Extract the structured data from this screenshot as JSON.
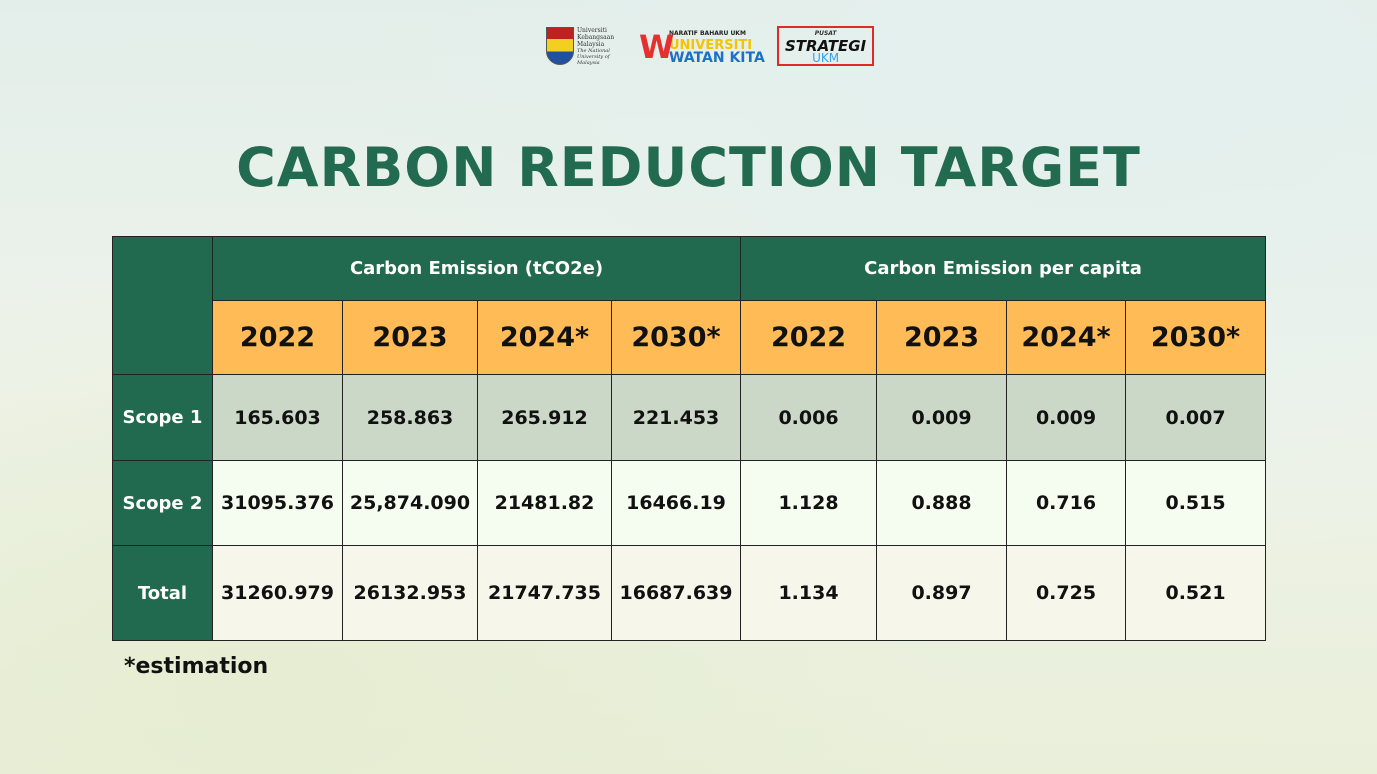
{
  "logos": {
    "ukm": [
      "Universiti",
      "Kebangsaan",
      "Malaysia",
      "The National University of Malaysia"
    ],
    "uwk": {
      "tag": "NARATIF BAHARU UKM",
      "line1": "UNIVERSITI",
      "line2": "WATAN KITA"
    },
    "strategi": {
      "top": "PUSAT",
      "main": "STRATEGI",
      "bottom": "UKM"
    }
  },
  "title": "CARBON REDUCTION TARGET",
  "table": {
    "group_headers": [
      "Carbon Emission (tCO2e)",
      "Carbon Emission per capita"
    ],
    "years": [
      "2022",
      "2023",
      "2024*",
      "2030*",
      "2022",
      "2023",
      "2024*",
      "2030*"
    ],
    "rows": [
      {
        "label": "Scope 1",
        "values": [
          "165.603",
          "258.863",
          "265.912",
          "221.453",
          "0.006",
          "0.009",
          "0.009",
          "0.007"
        ]
      },
      {
        "label": "Scope 2",
        "values": [
          "31095.376",
          "25,874.090",
          "21481.82",
          "16466.19",
          "1.128",
          "0.888",
          "0.716",
          "0.515"
        ]
      },
      {
        "label": "Total",
        "values": [
          "31260.979",
          "26132.953",
          "21747.735",
          "16687.639",
          "1.134",
          "0.897",
          "0.725",
          "0.521"
        ]
      }
    ]
  },
  "note": "*estimation",
  "colors": {
    "green": "#216a50",
    "orange": "#ffbb55",
    "title": "#236b50"
  }
}
